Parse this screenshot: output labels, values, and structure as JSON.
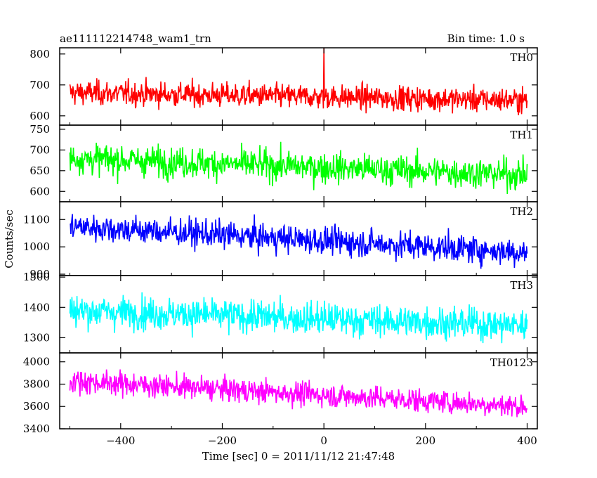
{
  "chart_data": {
    "type": "line",
    "title": "ae111112214748_wam1_trn",
    "subtitle": "Bin time: 1.0 s",
    "xlabel": "Time [sec] 0 = 2011/11/12 21:47:48",
    "ylabel": "Counts/sec",
    "xlim": [
      -520,
      420
    ],
    "x_ticks": [
      -400,
      -200,
      0,
      200,
      400
    ],
    "x_tick_labels": [
      "−400",
      "−200",
      "0",
      "200",
      "400"
    ],
    "x_range": [
      -500,
      400
    ],
    "grid": false,
    "panels": [
      {
        "name": "TH0",
        "color": "#ff0000",
        "ylim": [
          570,
          820
        ],
        "ticks": [
          600,
          700,
          800
        ],
        "tick_labels": [
          "600",
          "700",
          "800"
        ],
        "start_mean": 675,
        "end_mean": 650,
        "noise": 28,
        "spikes": [
          [
            0,
            820
          ]
        ]
      },
      {
        "name": "TH1",
        "color": "#00ff00",
        "ylim": [
          575,
          760
        ],
        "ticks": [
          600,
          650,
          700,
          750
        ],
        "tick_labels": [
          "600",
          "650",
          "700",
          "750"
        ],
        "start_mean": 680,
        "end_mean": 640,
        "noise": 26,
        "spikes": []
      },
      {
        "name": "TH2",
        "color": "#0000ff",
        "ylim": [
          895,
          1165
        ],
        "ticks": [
          900,
          1000,
          1100
        ],
        "tick_labels": [
          "900",
          "1000",
          "1100"
        ],
        "start_mean": 1075,
        "end_mean": 980,
        "noise": 36,
        "spikes": []
      },
      {
        "name": "TH3",
        "color": "#00ffff",
        "ylim": [
          1250,
          1505
        ],
        "ticks": [
          1300,
          1400,
          1500
        ],
        "tick_labels": [
          "1300",
          "1400",
          "1500"
        ],
        "start_mean": 1390,
        "end_mean": 1340,
        "noise": 38,
        "spikes": []
      },
      {
        "name": "TH0123",
        "color": "#ff00ff",
        "ylim": [
          3400,
          4080
        ],
        "ticks": [
          3400,
          3600,
          3800,
          4000
        ],
        "tick_labels": [
          "3400",
          "3600",
          "3800",
          "4000"
        ],
        "start_mean": 3830,
        "end_mean": 3600,
        "noise": 75,
        "spikes": []
      }
    ]
  }
}
